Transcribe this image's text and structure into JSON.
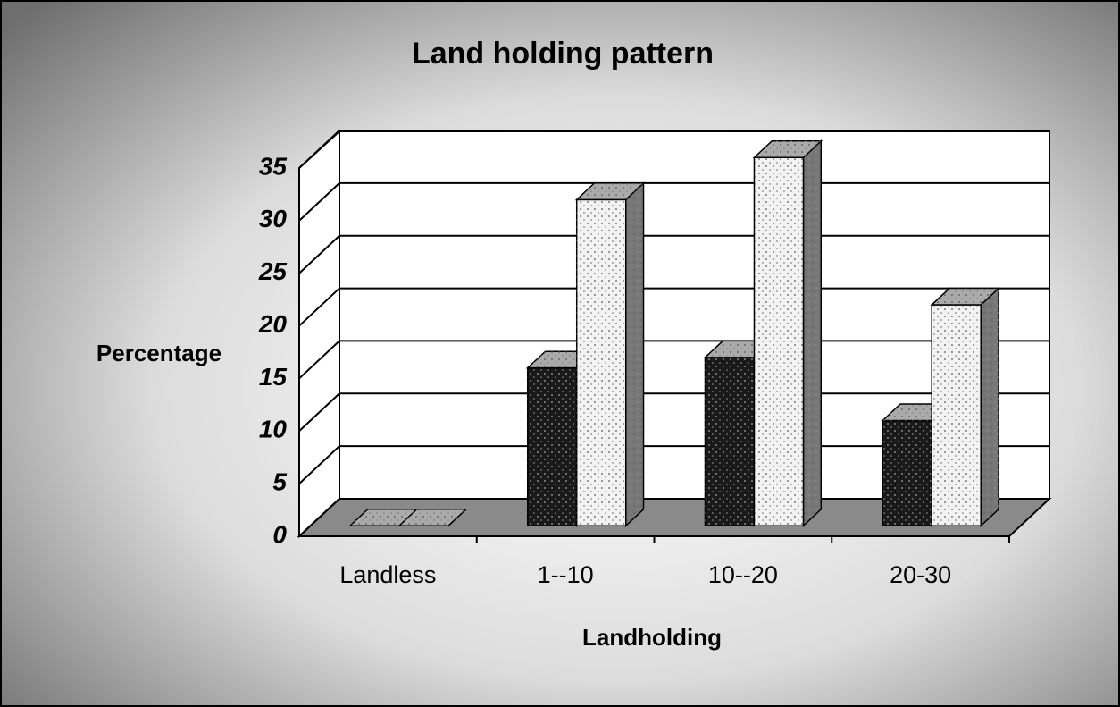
{
  "chart_data": {
    "type": "bar3d",
    "title": "Land holding pattern",
    "x_label": "Landholding",
    "y_label": "Percentage",
    "categories": [
      "Landless",
      "1--10",
      "10--20",
      "20-30"
    ],
    "series": [
      {
        "color": "#1a1a1a",
        "values": [
          0,
          15,
          16,
          10
        ]
      },
      {
        "color": "#f2f2f2",
        "values": [
          0,
          31,
          35,
          21
        ]
      }
    ],
    "ylim": [
      0,
      35
    ],
    "yticks": [
      0,
      5,
      10,
      15,
      20,
      25,
      30,
      35
    ],
    "grid": true
  }
}
